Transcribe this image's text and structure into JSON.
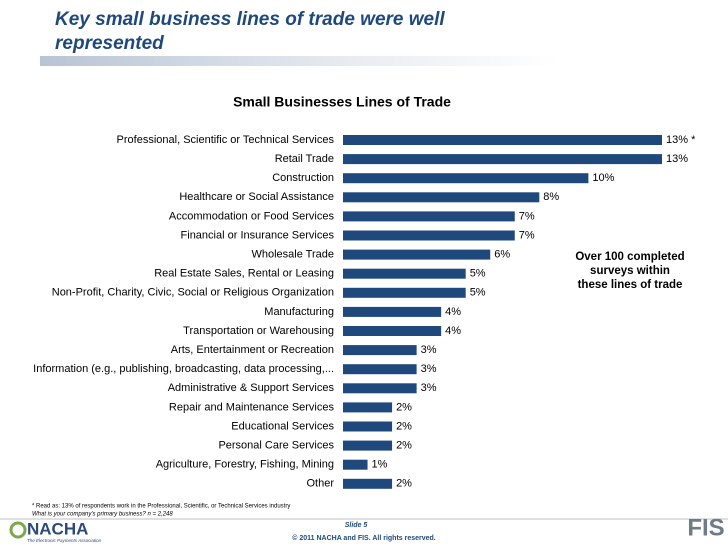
{
  "slide_title": [
    "Key small business lines of trade were well",
    "represented"
  ],
  "chart_data": {
    "type": "hbar",
    "title": "Small Businesses Lines of Trade",
    "categories": [
      "Professional, Scientific or Technical Services",
      "Retail Trade",
      "Construction",
      "Healthcare or Social Assistance",
      "Accommodation or Food Services",
      "Financial or Insurance Services",
      "Wholesale Trade",
      "Real Estate Sales, Rental or Leasing",
      "Non-Profit, Charity, Civic, Social or Religious Organization",
      "Manufacturing",
      "Transportation or Warehousing",
      "Arts, Entertainment or Recreation",
      "Information (e.g., publishing, broadcasting, data processing,...",
      "Administrative & Support Services",
      "Repair and Maintenance Services",
      "Educational Services",
      "Personal Care Services",
      "Agriculture, Forestry, Fishing, Mining",
      "Other"
    ],
    "values": [
      13,
      13,
      10,
      8,
      7,
      7,
      6,
      5,
      5,
      4,
      4,
      3,
      3,
      3,
      2,
      2,
      2,
      1,
      2
    ],
    "value_labels": [
      "13% *",
      "13%",
      "10%",
      "8%",
      "7%",
      "7%",
      "6%",
      "5%",
      "5%",
      "4%",
      "4%",
      "3%",
      "3%",
      "3%",
      "2%",
      "2%",
      "2%",
      "1%",
      "2%"
    ],
    "color": "#1f497d",
    "annotation": [
      "Over 100 completed",
      "surveys within",
      "these lines of trade"
    ]
  },
  "footnote": [
    "* Read as: 13% of respondents work in the Professional, Scientific, or Technical Services industry",
    "What is your company's primary business?  n = 2,248"
  ],
  "slide_number": "Slide 5",
  "copyright": "© 2011 NACHA and FIS. All rights reserved.",
  "logos": {
    "left": "NACHA",
    "left_tagline": "The Electronic Payments Association",
    "right": "FIS"
  }
}
